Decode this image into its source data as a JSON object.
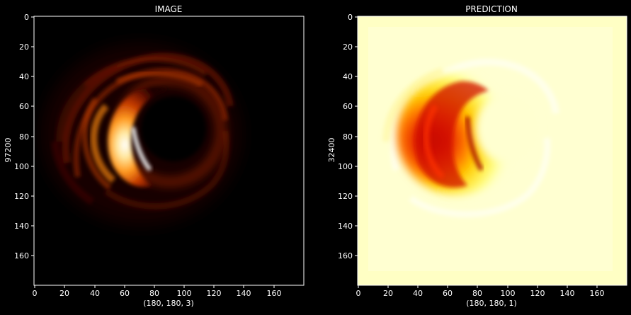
{
  "figure": {
    "background": "#000000",
    "text_color": "#ffffff"
  },
  "panels": [
    {
      "title": "IMAGE",
      "xlabel": "(180, 180, 3)",
      "ylabel": "97200",
      "xticks": [
        "0",
        "20",
        "40",
        "60",
        "80",
        "100",
        "120",
        "140",
        "160"
      ],
      "yticks": [
        "0",
        "20",
        "40",
        "60",
        "80",
        "100",
        "120",
        "140",
        "160"
      ],
      "extent": [
        0,
        180
      ],
      "colormap": "afmhot",
      "background": "#000000"
    },
    {
      "title": "PREDICTION",
      "xlabel": "(180, 180, 1)",
      "ylabel": "32400",
      "xticks": [
        "0",
        "20",
        "40",
        "60",
        "80",
        "100",
        "120",
        "140",
        "160"
      ],
      "yticks": [
        "0",
        "20",
        "40",
        "60",
        "80",
        "100",
        "120",
        "140",
        "160"
      ],
      "extent": [
        0,
        180
      ],
      "colormap": "hot (inverted)",
      "background": "#ffffc4"
    }
  ]
}
